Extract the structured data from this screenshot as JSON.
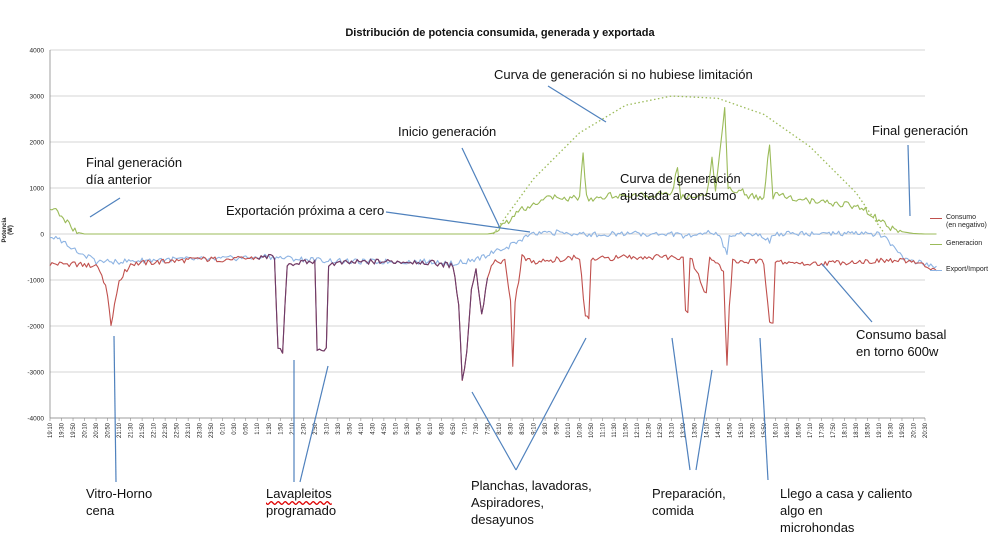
{
  "chart_data": {
    "type": "line",
    "title": "Distribución de potencia consumida, generada y exportada",
    "ylabel": "Potencia (W)",
    "ylim": [
      -4000,
      4000
    ],
    "yticks": [
      4000,
      3000,
      2000,
      1000,
      0,
      -1000,
      -2000,
      -3000,
      -4000
    ],
    "grid": true,
    "legend_position": "right",
    "x_ticks": [
      "19:10",
      "19:30",
      "19:50",
      "20:10",
      "20:30",
      "20:50",
      "21:10",
      "21:30",
      "21:50",
      "22:10",
      "22:30",
      "22:50",
      "23:10",
      "23:30",
      "23:50",
      "0:10",
      "0:30",
      "0:50",
      "1:10",
      "1:30",
      "1:50",
      "2:10",
      "2:30",
      "2:50",
      "3:10",
      "3:30",
      "3:50",
      "4:10",
      "4:30",
      "4:50",
      "5:10",
      "5:30",
      "5:50",
      "6:10",
      "6:30",
      "6:50",
      "7:10",
      "7:30",
      "7:50",
      "8:10",
      "8:30",
      "8:50",
      "9:10",
      "9:30",
      "9:50",
      "10:10",
      "10:30",
      "10:50",
      "11:10",
      "11:30",
      "11:50",
      "12:10",
      "12:30",
      "12:50",
      "13:10",
      "13:30",
      "13:50",
      "14:10",
      "14:30",
      "14:50",
      "15:10",
      "15:30",
      "15:50",
      "16:10",
      "16:30",
      "16:50",
      "17:10",
      "17:30",
      "17:50",
      "18:10",
      "18:30",
      "18:50",
      "19:10",
      "19:30",
      "19:50",
      "20:10",
      "20:30"
    ],
    "series": [
      {
        "name": "Consumo",
        "name_note": "(en negativo)",
        "color": "#c0504d",
        "points": [
          [
            0,
            -650
          ],
          [
            2,
            -650
          ],
          [
            4,
            -700
          ],
          [
            4.5,
            -900
          ],
          [
            5,
            -1300
          ],
          [
            5.3,
            -2000
          ],
          [
            5.6,
            -1500
          ],
          [
            6,
            -1000
          ],
          [
            7,
            -650
          ],
          [
            10,
            -600
          ],
          [
            13,
            -550
          ],
          [
            16,
            -550
          ],
          [
            19,
            -500
          ],
          [
            19.5,
            -500
          ],
          [
            19.8,
            -2500
          ],
          [
            20.2,
            -2600
          ],
          [
            20.6,
            -650
          ],
          [
            23,
            -600
          ],
          [
            23.2,
            -2500
          ],
          [
            23.6,
            -2550
          ],
          [
            24,
            -2500
          ],
          [
            24.2,
            -650
          ],
          [
            28,
            -600
          ],
          [
            32,
            -600
          ],
          [
            34,
            -650
          ],
          [
            35,
            -700
          ],
          [
            35.5,
            -1500
          ],
          [
            35.8,
            -3200
          ],
          [
            36.2,
            -2600
          ],
          [
            36.6,
            -1200
          ],
          [
            37,
            -800
          ],
          [
            37.5,
            -1800
          ],
          [
            38,
            -900
          ],
          [
            38.5,
            -600
          ],
          [
            39.5,
            -600
          ],
          [
            40,
            -1500
          ],
          [
            40.2,
            -2850
          ],
          [
            40.4,
            -1500
          ],
          [
            41,
            -500
          ],
          [
            42,
            -600
          ],
          [
            44,
            -550
          ],
          [
            46,
            -500
          ],
          [
            46.5,
            -1800
          ],
          [
            46.8,
            -1850
          ],
          [
            47,
            -550
          ],
          [
            50,
            -500
          ],
          [
            53,
            -500
          ],
          [
            55,
            -500
          ],
          [
            55.2,
            -1700
          ],
          [
            55.4,
            -1750
          ],
          [
            55.6,
            -500
          ],
          [
            56.5,
            -1000
          ],
          [
            57,
            -1300
          ],
          [
            57.3,
            -500
          ],
          [
            58.5,
            -800
          ],
          [
            58.8,
            -2900
          ],
          [
            59,
            -1600
          ],
          [
            59.3,
            -600
          ],
          [
            62,
            -600
          ],
          [
            62.5,
            -1900
          ],
          [
            62.8,
            -1950
          ],
          [
            63,
            -600
          ],
          [
            66,
            -650
          ],
          [
            70,
            -600
          ],
          [
            73,
            -580
          ],
          [
            75,
            -600
          ],
          [
            76,
            -700
          ],
          [
            77,
            -800
          ]
        ]
      },
      {
        "name": "Generacion",
        "color": "#9bbb59",
        "points": [
          [
            0,
            600
          ],
          [
            0.5,
            550
          ],
          [
            1,
            400
          ],
          [
            1.5,
            250
          ],
          [
            2,
            100
          ],
          [
            2.5,
            30
          ],
          [
            3,
            0
          ],
          [
            38,
            0
          ],
          [
            38.5,
            20
          ],
          [
            39,
            100
          ],
          [
            39.5,
            200
          ],
          [
            40,
            300
          ],
          [
            40.5,
            450
          ],
          [
            41,
            550
          ],
          [
            42,
            650
          ],
          [
            43,
            750
          ],
          [
            44,
            800
          ],
          [
            45,
            750
          ],
          [
            46,
            800
          ],
          [
            46.3,
            1800
          ],
          [
            46.6,
            800
          ],
          [
            47,
            750
          ],
          [
            48,
            800
          ],
          [
            49,
            850
          ],
          [
            50,
            800
          ],
          [
            51,
            850
          ],
          [
            52,
            800
          ],
          [
            53,
            900
          ],
          [
            54,
            850
          ],
          [
            54.5,
            1500
          ],
          [
            54.8,
            800
          ],
          [
            56,
            850
          ],
          [
            57,
            800
          ],
          [
            57.5,
            1600
          ],
          [
            57.8,
            900
          ],
          [
            58.3,
            2100
          ],
          [
            58.6,
            2750
          ],
          [
            58.9,
            1000
          ],
          [
            59.5,
            900
          ],
          [
            60,
            1000
          ],
          [
            60.5,
            800
          ],
          [
            61,
            850
          ],
          [
            62,
            750
          ],
          [
            62.5,
            2000
          ],
          [
            62.8,
            800
          ],
          [
            63,
            850
          ],
          [
            64,
            800
          ],
          [
            65,
            750
          ],
          [
            66,
            700
          ],
          [
            67,
            700
          ],
          [
            68,
            650
          ],
          [
            69,
            650
          ],
          [
            70,
            600
          ],
          [
            71,
            500
          ],
          [
            72,
            300
          ],
          [
            73,
            120
          ],
          [
            74,
            50
          ],
          [
            75,
            10
          ],
          [
            76,
            0
          ],
          [
            77,
            0
          ]
        ]
      },
      {
        "name": "Export/Import",
        "color": "#8eb4e3",
        "points": [
          [
            0,
            -50
          ],
          [
            1,
            -150
          ],
          [
            2,
            -300
          ],
          [
            3,
            -450
          ],
          [
            4,
            -600
          ],
          [
            6,
            -600
          ],
          [
            10,
            -550
          ],
          [
            14,
            -550
          ],
          [
            18,
            -500
          ],
          [
            19,
            -500
          ],
          [
            22,
            -550
          ],
          [
            26,
            -600
          ],
          [
            30,
            -600
          ],
          [
            34,
            -600
          ],
          [
            35,
            -650
          ],
          [
            36,
            -600
          ],
          [
            37,
            -550
          ],
          [
            38,
            -450
          ],
          [
            39,
            -350
          ],
          [
            40,
            -250
          ],
          [
            41,
            -100
          ],
          [
            42,
            0
          ],
          [
            44,
            30
          ],
          [
            46,
            0
          ],
          [
            48,
            -10
          ],
          [
            50,
            20
          ],
          [
            52,
            0
          ],
          [
            54,
            10
          ],
          [
            55,
            -50
          ],
          [
            56,
            0
          ],
          [
            58,
            30
          ],
          [
            58.8,
            -400
          ],
          [
            59,
            0
          ],
          [
            60,
            20
          ],
          [
            62,
            -50
          ],
          [
            62.5,
            -150
          ],
          [
            63,
            0
          ],
          [
            65,
            20
          ],
          [
            67,
            0
          ],
          [
            70,
            10
          ],
          [
            72,
            0
          ],
          [
            73,
            -200
          ],
          [
            74,
            -500
          ],
          [
            75,
            -600
          ],
          [
            76,
            -650
          ],
          [
            77,
            -700
          ]
        ]
      },
      {
        "name": "Curva de generación si no hubiese limitación",
        "color": "#9bbb59",
        "style": "dotted",
        "points": [
          [
            38.5,
            0
          ],
          [
            42,
            1200
          ],
          [
            46,
            2200
          ],
          [
            50,
            2800
          ],
          [
            54,
            3000
          ],
          [
            58,
            2950
          ],
          [
            62,
            2600
          ],
          [
            66,
            1900
          ],
          [
            70,
            900
          ],
          [
            72.5,
            0
          ]
        ]
      }
    ],
    "annotations": [
      {
        "id": "final_gen_prev",
        "text": "Final generación\ndía anterior"
      },
      {
        "id": "export_zero",
        "text": "Exportación próxima a cero"
      },
      {
        "id": "inicio",
        "text": "Inicio generación"
      },
      {
        "id": "curva_sin_lim",
        "text": "Curva de generación si no hubiese limitación"
      },
      {
        "id": "curva_ajustada",
        "text": "Curva de generación\najustada a consumo"
      },
      {
        "id": "final_gen",
        "text": "Final generación"
      },
      {
        "id": "consumo_basal",
        "text": "Consumo basal\nen torno  600w"
      },
      {
        "id": "vitro",
        "text": "Vitro-Horno\ncena"
      },
      {
        "id": "lavaplatos",
        "text": "Lavapleitos\nprogramado"
      },
      {
        "id": "planchas",
        "text": "Planchas, lavadoras,\nAspiradores,\ndesayunos"
      },
      {
        "id": "preparacion",
        "text": "Preparación,\ncomida"
      },
      {
        "id": "llego",
        "text": "Llego a casa y caliento\nalgo en\nmicrohondas"
      }
    ]
  }
}
